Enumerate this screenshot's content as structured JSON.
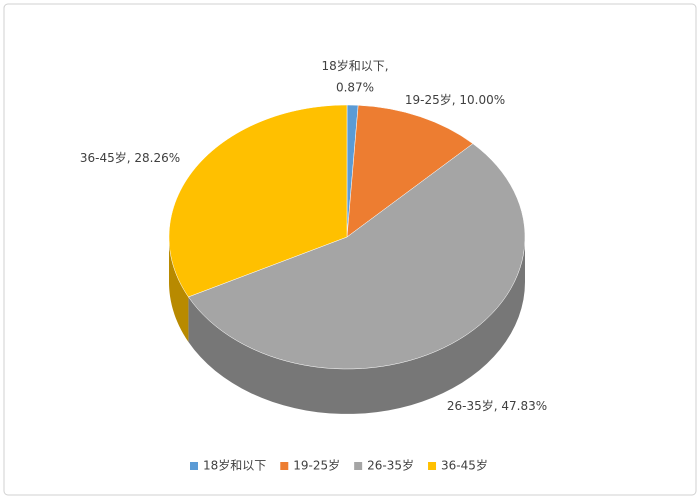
{
  "chart_data": {
    "type": "pie3d",
    "categories": [
      "18岁和以下",
      "19-25岁",
      "26-35岁",
      "36-45岁"
    ],
    "values": [
      0.87,
      10.0,
      47.83,
      28.26
    ],
    "value_labels": [
      "0.87%",
      "10.00%",
      "47.83%",
      "28.26%"
    ],
    "colors": [
      "#5b9bd5",
      "#ed7d31",
      "#a5a5a5",
      "#ffc000"
    ],
    "legend": "bottom"
  }
}
